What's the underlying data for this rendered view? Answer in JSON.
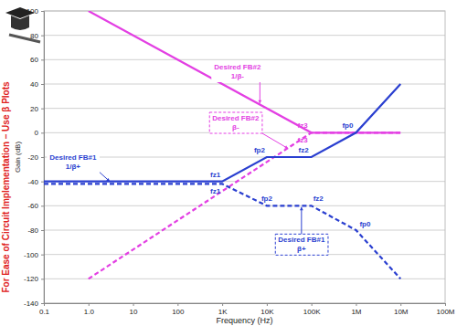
{
  "chart_data": {
    "type": "line",
    "side_title": "For Ease of Circuit Implementation – Use β Plots",
    "x_label": "Frequency (Hz)",
    "y_label": "Gain (dB)",
    "log": "x",
    "grid": true,
    "xlim": [
      0.1,
      100000000
    ],
    "xticks": [
      0.1,
      {
        "value": 1,
        "label": "1.0"
      },
      10,
      100,
      {
        "value": 1000,
        "label": "1K"
      },
      {
        "value": 10000,
        "label": "10K"
      },
      {
        "value": 100000,
        "label": "100K"
      },
      {
        "value": 1000000,
        "label": "1M"
      },
      {
        "value": 10000000,
        "label": "10M"
      },
      {
        "value": 100000000,
        "label": "100M"
      }
    ],
    "ylim": [
      -140,
      100
    ],
    "yticks": [
      -140,
      -120,
      -100,
      -80,
      -60,
      -40,
      -20,
      0,
      20,
      40,
      60,
      80,
      100
    ],
    "series": [
      {
        "name": "1/β-",
        "color": "#e33fe3",
        "line_style": "solid",
        "x": [
          1,
          100000,
          10000000
        ],
        "values": [
          100,
          0,
          0
        ]
      },
      {
        "name": "β-",
        "color": "#e33fe3",
        "line_style": "dashed",
        "x": [
          1,
          100000,
          10000000
        ],
        "values": [
          -120,
          0,
          0
        ]
      },
      {
        "name": "1/β+",
        "color": "#2a3fd0",
        "line_style": "solid",
        "x": [
          0.1,
          1000,
          10000,
          100000,
          1000000,
          10000000
        ],
        "values": [
          -40,
          -40,
          -20,
          -20,
          0,
          40
        ]
      },
      {
        "name": "β+",
        "color": "#2a3fd0",
        "line_style": "dashed",
        "x": [
          0.1,
          1000,
          10000,
          100000,
          1000000,
          10000000
        ],
        "values": [
          -42,
          -42,
          -60,
          -60,
          -80,
          -120
        ]
      }
    ],
    "annotations": [
      "Desired FB#2",
      "Desired FB#2",
      "Desired FB#1",
      "Desired FB#1",
      "fz1",
      "fz1",
      "fp2",
      "fp2",
      "fz2",
      "fz2",
      "fz3",
      "fz3",
      "fp0",
      "fp0"
    ]
  }
}
